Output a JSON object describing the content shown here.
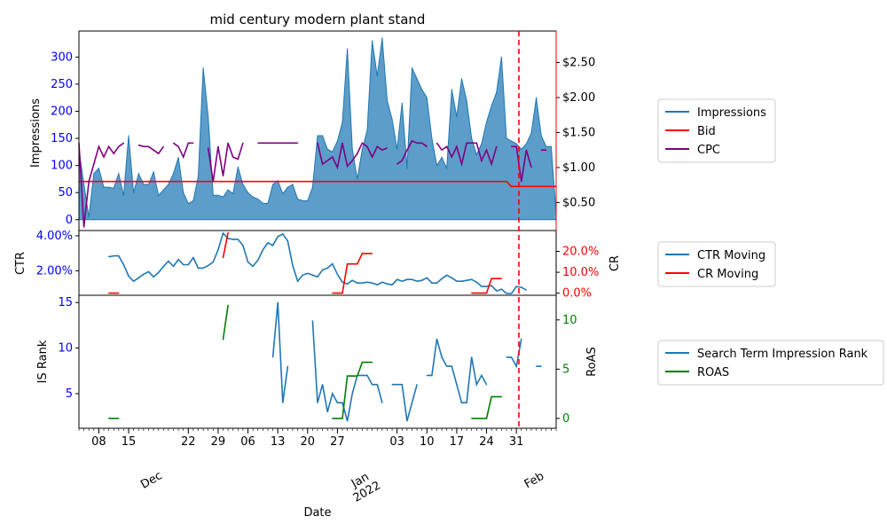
{
  "colors": {
    "impressions": "#1f77b4",
    "bid": "#ff0000",
    "cpc": "#800080",
    "ctr": "#1f77b4",
    "cr": "#ff0000",
    "rank": "#1f77b4",
    "roas": "#008000",
    "left_axis_ticks": "#0000ff",
    "marker": "#ff0000"
  },
  "chart_data": [
    {
      "type": "area",
      "title": "mid century modern plant stand",
      "ylabel": "Impressions",
      "ylim": [
        -20,
        348
      ],
      "yticks": [
        0,
        50,
        100,
        150,
        200,
        250,
        300
      ],
      "y2lim": [
        0.1,
        2.95
      ],
      "y2ticks": [
        0.5,
        1.0,
        1.5,
        2.0,
        2.5
      ],
      "y2tick_labels": [
        "$0.50",
        "$1.00",
        "$1.50",
        "$2.00",
        "$2.50"
      ],
      "legend": [
        "Impressions",
        "Bid",
        "CPC"
      ],
      "legend_position": "right",
      "series": [
        {
          "name": "Impressions",
          "values": [
            130,
            65,
            5,
            85,
            95,
            60,
            60,
            58,
            85,
            45,
            155,
            50,
            85,
            65,
            65,
            88,
            45,
            55,
            65,
            85,
            115,
            50,
            30,
            35,
            80,
            280,
            190,
            45,
            45,
            42,
            55,
            48,
            97,
            65,
            50,
            42,
            38,
            30,
            30,
            65,
            72,
            48,
            60,
            65,
            38,
            35,
            35,
            60,
            155,
            155,
            130,
            125,
            145,
            180,
            315,
            130,
            75,
            130,
            165,
            330,
            265,
            335,
            220,
            185,
            130,
            215,
            95,
            280,
            260,
            240,
            225,
            150,
            100,
            115,
            95,
            240,
            190,
            260,
            220,
            150,
            120,
            140,
            180,
            210,
            235,
            300,
            150,
            145,
            140,
            130,
            140,
            160,
            225,
            155,
            135,
            135,
            10
          ]
        },
        {
          "name": "Bid",
          "values": [
            0.8,
            0.8,
            0.8,
            0.8,
            0.8,
            0.8,
            0.8,
            0.8,
            0.8,
            0.8,
            0.8,
            0.8,
            0.8,
            0.8,
            0.8,
            0.8,
            0.8,
            0.8,
            0.8,
            0.8,
            0.8,
            0.8,
            0.8,
            0.8,
            0.8,
            0.8,
            0.8,
            0.8,
            0.8,
            0.8,
            0.8,
            0.8,
            0.8,
            0.8,
            0.8,
            0.8,
            0.8,
            0.8,
            0.8,
            0.8,
            0.8,
            0.8,
            0.8,
            0.8,
            0.8,
            0.8,
            0.8,
            0.8,
            0.8,
            0.8,
            0.8,
            0.8,
            0.8,
            0.8,
            0.8,
            0.8,
            0.8,
            0.8,
            0.8,
            0.8,
            0.8,
            0.8,
            0.8,
            0.8,
            0.8,
            0.8,
            0.8,
            0.8,
            0.8,
            0.8,
            0.8,
            0.8,
            0.8,
            0.8,
            0.8,
            0.8,
            0.8,
            0.8,
            0.8,
            0.8,
            0.8,
            0.8,
            0.8,
            0.8,
            0.8,
            0.8,
            0.8,
            0.73,
            0.73,
            0.73,
            0.73,
            0.73,
            0.73,
            0.73,
            0.73,
            0.73,
            0.73
          ]
        },
        {
          "name": "CPC",
          "values": [
            1.35,
            0.15,
            0.8,
            1.05,
            1.3,
            1.15,
            1.3,
            1.2,
            1.3,
            1.35,
            null,
            null,
            1.32,
            1.3,
            1.3,
            1.25,
            1.2,
            1.3,
            null,
            1.35,
            1.3,
            1.15,
            1.35,
            1.35,
            null,
            null,
            1.28,
            0.8,
            1.3,
            0.88,
            1.35,
            1.15,
            1.12,
            1.35,
            null,
            null,
            1.35,
            1.35,
            1.35,
            1.35,
            1.35,
            1.35,
            1.35,
            1.35,
            1.35,
            null,
            null,
            null,
            1.35,
            1.05,
            1.1,
            1.15,
            1.0,
            1.35,
            1.02,
            1.1,
            1.2,
            1.35,
            1.3,
            1.15,
            1.3,
            1.25,
            1.28,
            null,
            1.05,
            1.1,
            1.25,
            1.38,
            1.35,
            1.35,
            1.3,
            null,
            1.35,
            1.25,
            1.3,
            1.15,
            1.3,
            1.05,
            1.35,
            1.35,
            1.35,
            1.1,
            1.25,
            1.05,
            1.3,
            null,
            null,
            1.3,
            1.3,
            0.8,
            1.25,
            1.0,
            null,
            1.25,
            1.25,
            null,
            null
          ]
        }
      ]
    },
    {
      "type": "line",
      "ylabel": "CTR",
      "y2label": "CR",
      "ylim": [
        0.6,
        4.3
      ],
      "yticks": [
        2.0,
        4.0
      ],
      "ytick_labels": [
        "2.00%",
        "4.00%"
      ],
      "y2lim": [
        -1,
        30
      ],
      "y2ticks": [
        0,
        10,
        20
      ],
      "y2tick_labels": [
        "0.0%",
        "10.0%",
        "20.0%"
      ],
      "legend": [
        "CTR Moving",
        "CR Moving"
      ],
      "legend_position": "right",
      "series": [
        {
          "name": "CTR Moving",
          "values": [
            null,
            null,
            null,
            null,
            null,
            null,
            2.8,
            2.85,
            2.85,
            2.35,
            1.7,
            1.4,
            1.6,
            1.8,
            1.95,
            1.65,
            1.9,
            2.25,
            2.55,
            2.25,
            2.65,
            2.35,
            2.35,
            2.75,
            2.15,
            2.15,
            2.3,
            2.5,
            3.2,
            4.15,
            3.85,
            3.8,
            3.8,
            3.45,
            2.5,
            2.25,
            2.6,
            3.2,
            3.6,
            3.45,
            3.95,
            4.1,
            3.7,
            2.3,
            1.4,
            1.75,
            1.85,
            1.75,
            1.65,
            2.05,
            2.15,
            2.4,
            1.8,
            1.35,
            1.25,
            1.45,
            1.3,
            1.3,
            1.35,
            1.3,
            1.2,
            1.35,
            1.25,
            1.2,
            1.5,
            1.4,
            1.5,
            1.5,
            1.4,
            1.45,
            1.6,
            1.3,
            1.3,
            1.55,
            1.75,
            1.6,
            1.4,
            1.4,
            1.45,
            1.5,
            1.35,
            1.1,
            1.1,
            1.15,
            0.85,
            0.95,
            0.7,
            0.7,
            1.1,
            1.05,
            0.9,
            null,
            null,
            null,
            null,
            null,
            null
          ]
        },
        {
          "name": "CR Moving",
          "values": [
            null,
            null,
            null,
            null,
            null,
            null,
            0,
            0,
            0,
            null,
            null,
            null,
            null,
            null,
            null,
            null,
            null,
            null,
            null,
            null,
            null,
            null,
            null,
            null,
            null,
            null,
            null,
            null,
            null,
            17,
            29,
            null,
            null,
            null,
            null,
            null,
            null,
            null,
            null,
            null,
            null,
            null,
            null,
            null,
            null,
            null,
            null,
            null,
            null,
            null,
            null,
            0,
            0,
            0,
            14,
            14,
            14,
            19,
            19,
            19,
            null,
            null,
            null,
            null,
            null,
            null,
            null,
            null,
            null,
            null,
            null,
            null,
            null,
            null,
            null,
            null,
            null,
            null,
            null,
            0,
            0,
            0,
            0,
            7,
            7,
            7,
            null,
            null,
            null,
            null,
            null,
            null,
            null,
            null,
            null,
            null,
            null
          ]
        }
      ]
    },
    {
      "type": "line",
      "ylabel": "IS Rank",
      "y2label": "RoAS",
      "ylim": [
        1.2,
        15.8
      ],
      "yticks": [
        5,
        10,
        15
      ],
      "y2lim": [
        -1,
        12.5
      ],
      "y2ticks": [
        0,
        5,
        10
      ],
      "legend": [
        "Search Term Impression Rank",
        "ROAS"
      ],
      "legend_position": "right",
      "x_tick_labels": [
        "08",
        "15",
        "Dec",
        "22",
        "29",
        "06",
        "13",
        "20",
        "27",
        "Jan\n2022",
        "03",
        "10",
        "17",
        "24",
        "31",
        "Feb"
      ],
      "series": [
        {
          "name": "Search Term Impression Rank",
          "values": [
            null,
            null,
            null,
            null,
            null,
            null,
            null,
            null,
            null,
            null,
            null,
            null,
            null,
            null,
            null,
            null,
            null,
            null,
            null,
            null,
            null,
            null,
            null,
            null,
            null,
            null,
            null,
            null,
            null,
            null,
            null,
            null,
            null,
            null,
            null,
            null,
            null,
            null,
            null,
            9,
            15,
            4,
            8,
            null,
            null,
            null,
            null,
            13,
            4,
            6,
            3,
            5,
            4,
            4,
            2,
            5,
            7,
            7,
            7,
            6,
            6,
            4,
            null,
            6,
            6,
            6,
            2,
            4,
            6,
            null,
            7,
            7,
            11,
            9,
            8,
            8,
            6,
            4,
            4,
            9,
            6,
            7,
            6,
            null,
            null,
            null,
            9,
            9,
            8,
            11,
            null,
            null,
            8,
            8,
            null,
            null,
            null
          ]
        },
        {
          "name": "ROAS",
          "values": [
            null,
            null,
            null,
            null,
            null,
            null,
            0,
            0,
            0,
            null,
            null,
            null,
            null,
            null,
            null,
            null,
            null,
            null,
            null,
            null,
            null,
            null,
            null,
            null,
            null,
            null,
            null,
            null,
            null,
            8,
            11.5,
            null,
            null,
            null,
            null,
            null,
            null,
            null,
            null,
            null,
            null,
            null,
            null,
            null,
            null,
            null,
            null,
            null,
            null,
            null,
            null,
            0,
            0,
            0,
            4.3,
            4.3,
            4.3,
            5.7,
            5.7,
            5.7,
            null,
            null,
            null,
            null,
            null,
            null,
            null,
            null,
            null,
            null,
            null,
            null,
            null,
            null,
            null,
            null,
            null,
            null,
            null,
            0,
            0,
            0,
            0,
            2.2,
            2.2,
            2.2,
            null,
            null,
            null,
            null,
            null,
            null,
            null,
            null,
            null,
            null,
            null
          ]
        }
      ]
    }
  ],
  "x_axis": {
    "label": "Date"
  }
}
